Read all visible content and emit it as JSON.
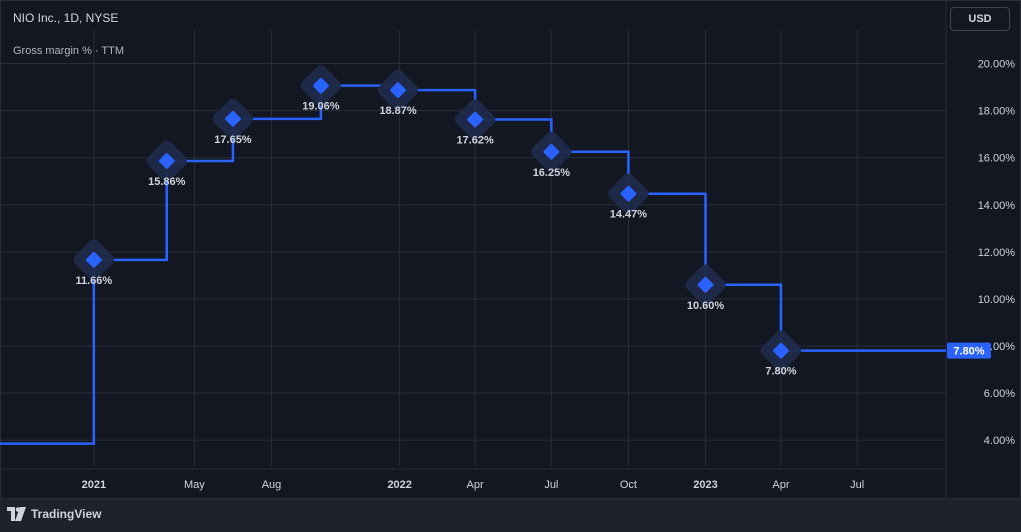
{
  "header": {
    "symbol_title": "NIO Inc., 1D, NYSE",
    "indicator_label": "Gross margin % · TTM",
    "currency": "USD"
  },
  "footer": {
    "brand": "TradingView"
  },
  "colors": {
    "line": "#2962ff",
    "background": "#131722",
    "grid": "#2a2e39",
    "axis_text": "#d1d4dc"
  },
  "chart_data": {
    "type": "line",
    "style": "step",
    "title": "Gross margin % · TTM",
    "x_ticks": [
      {
        "label": "2021",
        "date": "2021-01-01",
        "bold": true
      },
      {
        "label": "May",
        "date": "2021-05-01",
        "bold": false
      },
      {
        "label": "Aug",
        "date": "2021-08-01",
        "bold": false
      },
      {
        "label": "2022",
        "date": "2022-01-01",
        "bold": true
      },
      {
        "label": "Apr",
        "date": "2022-04-01",
        "bold": false
      },
      {
        "label": "Jul",
        "date": "2022-07-01",
        "bold": false
      },
      {
        "label": "Oct",
        "date": "2022-10-01",
        "bold": false
      },
      {
        "label": "2023",
        "date": "2023-01-01",
        "bold": true
      },
      {
        "label": "Apr",
        "date": "2023-04-01",
        "bold": false
      },
      {
        "label": "Jul",
        "date": "2023-07-01",
        "bold": false
      }
    ],
    "y_ticks": [
      "4.00%",
      "6.00%",
      "8.00%",
      "10.00%",
      "12.00%",
      "14.00%",
      "16.00%",
      "18.00%",
      "20.00%"
    ],
    "ylim": [
      2.9,
      21.0
    ],
    "xlim": [
      "2020-09-11",
      "2023-10-15"
    ],
    "pre_series_value": 3.85,
    "points": [
      {
        "date": "2021-01-01",
        "value": 11.66,
        "label": "11.66%"
      },
      {
        "date": "2021-03-29",
        "value": 15.86,
        "label": "15.86%"
      },
      {
        "date": "2021-06-16",
        "value": 17.65,
        "label": "17.65%"
      },
      {
        "date": "2021-09-29",
        "value": 19.06,
        "label": "19.06%"
      },
      {
        "date": "2021-12-30",
        "value": 18.87,
        "label": "18.87%"
      },
      {
        "date": "2022-04-01",
        "value": 17.62,
        "label": "17.62%"
      },
      {
        "date": "2022-07-01",
        "value": 16.25,
        "label": "16.25%"
      },
      {
        "date": "2022-10-01",
        "value": 14.47,
        "label": "14.47%"
      },
      {
        "date": "2023-01-01",
        "value": 10.6,
        "label": "10.60%"
      },
      {
        "date": "2023-04-01",
        "value": 7.8,
        "label": "7.80%"
      }
    ],
    "last_value_label": "7.80%",
    "grid": true,
    "legend": "none"
  }
}
